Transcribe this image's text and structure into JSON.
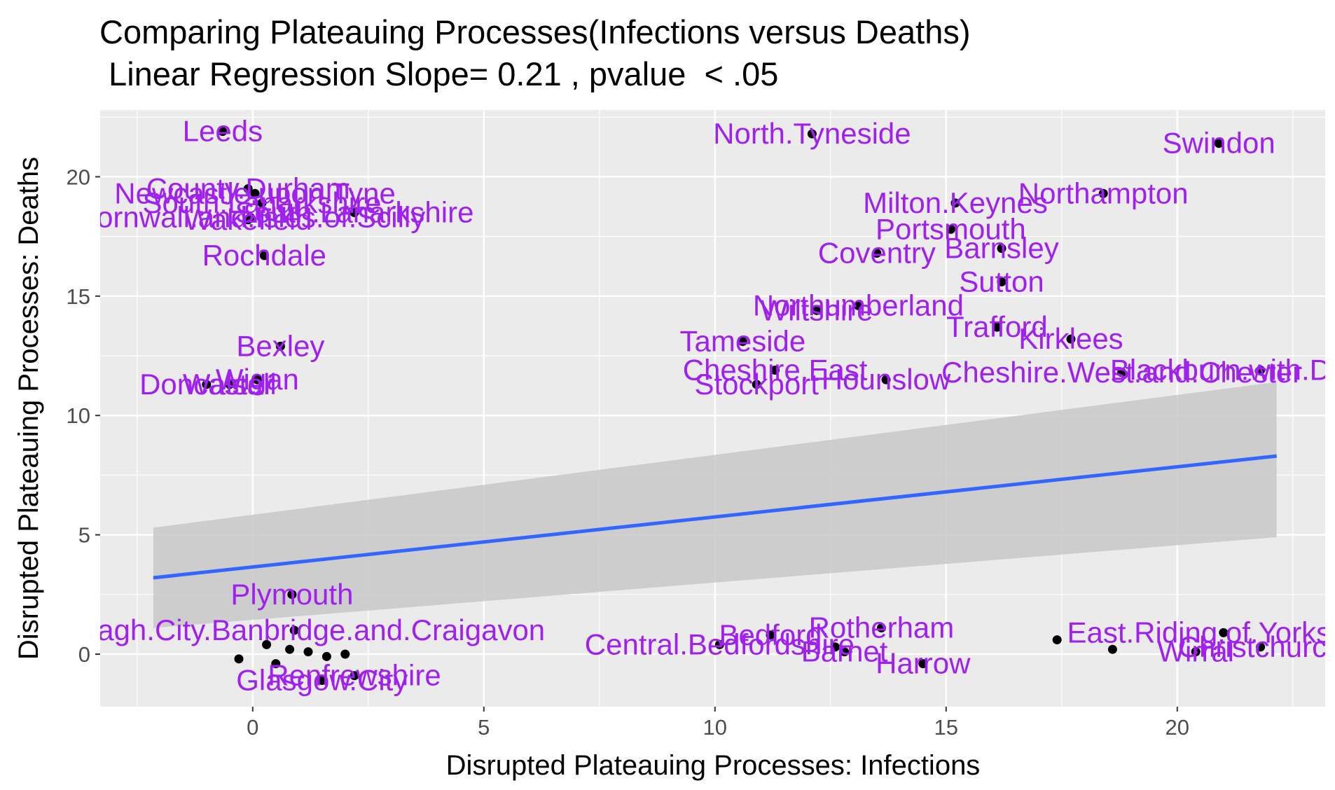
{
  "chart_data": {
    "type": "scatter",
    "title": "Comparing Plateauing Processes(Infections versus Deaths)",
    "subtitle": " Linear Regression Slope= 0.21 , pvalue  < .05",
    "xlabel": "Disrupted Plateauing Processes: Infections",
    "ylabel": "Disrupted Plateauing Processes: Deaths",
    "xlim": [
      -3.3,
      23.2
    ],
    "ylim": [
      -2.2,
      22.8
    ],
    "x_ticks": [
      0,
      5,
      10,
      15,
      20
    ],
    "y_ticks": [
      0,
      5,
      10,
      15,
      20
    ],
    "grid": true,
    "colors": {
      "panel": "#ebebeb",
      "grid": "#ffffff",
      "point": "#000000",
      "label": "#a020f0",
      "fit_line": "#3366ff",
      "ribbon": "#c8c8c8"
    },
    "regression": {
      "x": [
        -2.15,
        22.15
      ],
      "y": [
        3.2,
        8.3
      ],
      "ci_lower": [
        1.1,
        4.9
      ],
      "ci_upper": [
        5.3,
        11.4
      ]
    },
    "points": [
      {
        "x": -0.65,
        "y": 21.9,
        "label": "Leeds"
      },
      {
        "x": -0.1,
        "y": 19.5,
        "label": "County.Durham"
      },
      {
        "x": 0.05,
        "y": 19.3,
        "label": "Newcastle.upon.Tyne"
      },
      {
        "x": 0.2,
        "y": 18.9,
        "label": "South.Lanarkshire"
      },
      {
        "x": 2.2,
        "y": 18.5,
        "label": "South.Lanarkshire"
      },
      {
        "x": -0.05,
        "y": 18.3,
        "label": "Cornwall.and.Isles.of.Scilly"
      },
      {
        "x": -0.1,
        "y": 18.2,
        "label": "Wakefield"
      },
      {
        "x": 0.25,
        "y": 16.7,
        "label": "Rochdale"
      },
      {
        "x": 0.6,
        "y": 12.9,
        "label": "Bexley"
      },
      {
        "x": 0.1,
        "y": 11.5,
        "label": "Wigan"
      },
      {
        "x": -1.0,
        "y": 11.3,
        "label": "Doncaster"
      },
      {
        "x": -0.5,
        "y": 11.3,
        "label": "Walsall"
      },
      {
        "x": 12.1,
        "y": 21.8,
        "label": "North.Tyneside"
      },
      {
        "x": 20.9,
        "y": 21.4,
        "label": "Swindon"
      },
      {
        "x": 18.4,
        "y": 19.3,
        "label": "Northampton"
      },
      {
        "x": 15.2,
        "y": 18.9,
        "label": "Milton.Keynes"
      },
      {
        "x": 15.1,
        "y": 17.8,
        "label": "Portsmouth"
      },
      {
        "x": 16.2,
        "y": 17.0,
        "label": "Barnsley"
      },
      {
        "x": 13.5,
        "y": 16.8,
        "label": "Coventry"
      },
      {
        "x": 16.2,
        "y": 15.6,
        "label": "Sutton"
      },
      {
        "x": 13.1,
        "y": 14.6,
        "label": "Northumberland"
      },
      {
        "x": 12.2,
        "y": 14.4,
        "label": "Wiltshire"
      },
      {
        "x": 16.1,
        "y": 13.7,
        "label": "Trafford"
      },
      {
        "x": 17.7,
        "y": 13.2,
        "label": "Kirklees"
      },
      {
        "x": 10.6,
        "y": 13.1,
        "label": "Tameside"
      },
      {
        "x": 11.3,
        "y": 11.9,
        "label": "Cheshire.East"
      },
      {
        "x": 18.8,
        "y": 11.8,
        "label": "Cheshire.West.and.Chester"
      },
      {
        "x": 21.8,
        "y": 11.9,
        "label": "Blackburn.with.Darwen"
      },
      {
        "x": 13.7,
        "y": 11.5,
        "label": "Hounslow"
      },
      {
        "x": 10.9,
        "y": 11.3,
        "label": "Stockport"
      },
      {
        "x": 0.85,
        "y": 2.5,
        "label": "Plymouth"
      },
      {
        "x": 0.9,
        "y": 1.0,
        "label": "Armagh.City.Banbridge.and.Craigavon"
      },
      {
        "x": 0.3,
        "y": 0.4,
        "label": ""
      },
      {
        "x": 0.8,
        "y": 0.2,
        "label": ""
      },
      {
        "x": 1.2,
        "y": 0.1,
        "label": ""
      },
      {
        "x": 1.6,
        "y": -0.1,
        "label": ""
      },
      {
        "x": -0.3,
        "y": -0.2,
        "label": ""
      },
      {
        "x": 2.0,
        "y": 0.0,
        "label": ""
      },
      {
        "x": 0.5,
        "y": -0.4,
        "label": ""
      },
      {
        "x": 1.5,
        "y": -1.1,
        "label": "Glasgow.City"
      },
      {
        "x": 2.2,
        "y": -0.9,
        "label": "Renfrewshire"
      },
      {
        "x": 13.6,
        "y": 1.1,
        "label": "Rotherham"
      },
      {
        "x": 11.2,
        "y": 0.8,
        "label": "Bedford"
      },
      {
        "x": 10.1,
        "y": 0.4,
        "label": "Central.Bedfordshire"
      },
      {
        "x": 12.6,
        "y": 0.3,
        "label": ""
      },
      {
        "x": 14.5,
        "y": -0.4,
        "label": "Harrow"
      },
      {
        "x": 12.8,
        "y": 0.1,
        "label": "Barnet"
      },
      {
        "x": 17.4,
        "y": 0.6,
        "label": ""
      },
      {
        "x": 21.0,
        "y": 0.9,
        "label": "East.Riding.of.Yorkshire"
      },
      {
        "x": 21.8,
        "y": 0.3,
        "label": "Christchurch"
      },
      {
        "x": 20.4,
        "y": 0.1,
        "label": "Wirral"
      },
      {
        "x": 18.6,
        "y": 0.2,
        "label": ""
      }
    ]
  }
}
